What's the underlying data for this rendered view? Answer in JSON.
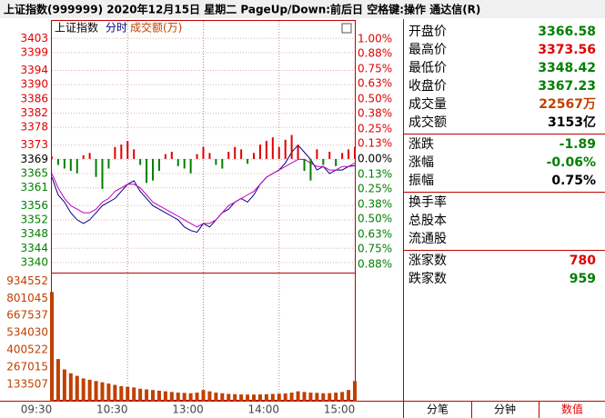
{
  "window_title": "上证指数(999999)  2020年12月15日 星期二 PageUp/Down:前后日 空格键:操作 通达信(R)",
  "chart_data": [
    {
      "type": "line",
      "title": "上证指数",
      "x": [
        "09:30",
        "09:35",
        "09:40",
        "09:45",
        "09:50",
        "09:55",
        "10:00",
        "10:05",
        "10:10",
        "10:15",
        "10:20",
        "10:25",
        "10:30",
        "10:35",
        "10:40",
        "10:45",
        "10:50",
        "10:55",
        "11:00",
        "11:05",
        "11:10",
        "11:15",
        "11:20",
        "11:25",
        "11:30",
        "13:05",
        "13:10",
        "13:15",
        "13:20",
        "13:25",
        "13:30",
        "13:35",
        "13:40",
        "13:45",
        "13:50",
        "13:55",
        "14:00",
        "14:05",
        "14:10",
        "14:15",
        "14:20",
        "14:25",
        "14:30",
        "14:35",
        "14:40",
        "14:45",
        "14:50",
        "14:55",
        "15:00"
      ],
      "xticks": [
        "09:30",
        "10:30",
        "13:00",
        "14:00",
        "15:00"
      ],
      "series": [
        {
          "name": "分时",
          "color": "#000080",
          "values": [
            3364,
            3359,
            3357,
            3354,
            3352,
            3351,
            3352,
            3354,
            3356,
            3357,
            3358,
            3360,
            3362,
            3363,
            3360,
            3358,
            3356,
            3355,
            3354,
            3353,
            3352,
            3350,
            3349,
            3348.5,
            3351,
            3350,
            3352,
            3354,
            3355,
            3357,
            3358,
            3357,
            3359,
            3362,
            3364,
            3365,
            3366,
            3368,
            3371,
            3373,
            3371,
            3369,
            3366,
            3367,
            3365,
            3366,
            3366,
            3367,
            3367.23
          ]
        },
        {
          "color": "#c000c0",
          "values": [
            3365,
            3361,
            3358,
            3356,
            3355,
            3354,
            3354,
            3355,
            3357,
            3358,
            3360,
            3361,
            3362,
            3362,
            3361,
            3359,
            3357,
            3356,
            3355,
            3354,
            3353,
            3352,
            3351,
            3350,
            3351,
            3351,
            3352,
            3354,
            3356,
            3357,
            3358,
            3359,
            3360,
            3362,
            3364,
            3365,
            3366,
            3367,
            3368,
            3369,
            3369,
            3368,
            3367,
            3367,
            3366,
            3366,
            3367,
            3367,
            3368
          ]
        },
        {
          "type": "bar",
          "axis": "y2",
          "colors": [
            "#e00000",
            "#008000"
          ],
          "values": [
            0.02,
            -0.05,
            -0.08,
            -0.1,
            -0.12,
            0.03,
            0.05,
            -0.15,
            -0.25,
            -0.08,
            0.1,
            0.12,
            0.15,
            0.08,
            -0.05,
            -0.2,
            -0.18,
            -0.1,
            0.04,
            0.06,
            -0.06,
            -0.08,
            -0.12,
            0.04,
            0.1,
            0.05,
            -0.05,
            -0.08,
            0.06,
            0.1,
            0.08,
            -0.04,
            0.05,
            0.12,
            0.15,
            0.18,
            0.1,
            0.16,
            0.2,
            0.12,
            -0.1,
            -0.18,
            0.08,
            -0.05,
            0.06,
            -0.06,
            0.05,
            0.08,
            0.1
          ]
        }
      ],
      "ylim": [
        3339.47,
        3402.81
      ],
      "yticks": [
        3403,
        3399,
        3394,
        3390,
        3386,
        3382,
        3378,
        3373,
        3369,
        3365,
        3361,
        3356,
        3352,
        3348,
        3344,
        3340
      ],
      "y2lim": [
        -0.88,
        1.0
      ],
      "y2ticks": [
        {
          "value": 1.0,
          "label": "1.00%"
        },
        {
          "value": 0.88,
          "label": "0.88%"
        },
        {
          "value": 0.75,
          "label": "0.75%"
        },
        {
          "value": 0.63,
          "label": "0.63%"
        },
        {
          "value": 0.5,
          "label": "0.50%"
        },
        {
          "value": 0.38,
          "label": "0.38%"
        },
        {
          "value": 0.25,
          "label": "0.25%"
        },
        {
          "value": 0.13,
          "label": "0.13%"
        },
        {
          "value": 0,
          "label": "0.00%"
        },
        {
          "value": -0.13,
          "label": "0.13%"
        },
        {
          "value": -0.25,
          "label": "0.25%"
        },
        {
          "value": -0.38,
          "label": "0.38%"
        },
        {
          "value": -0.5,
          "label": "0.50%"
        },
        {
          "value": -0.63,
          "label": "0.63%"
        },
        {
          "value": -0.75,
          "label": "0.75%"
        },
        {
          "value": -0.88,
          "label": "0.88%"
        }
      ],
      "up_color": "#e00000",
      "down_color": "#008000",
      "grid": true
    },
    {
      "type": "bar",
      "series": [
        {
          "name": "成交额(万)",
          "color": "#c04000",
          "values": [
            850000,
            330000,
            250000,
            220000,
            200000,
            180000,
            170000,
            160000,
            150000,
            140000,
            130000,
            120000,
            115000,
            110000,
            100000,
            95000,
            90000,
            85000,
            80000,
            75000,
            70000,
            68000,
            65000,
            70000,
            90000,
            80000,
            70000,
            65000,
            60000,
            58000,
            56000,
            55000,
            55000,
            56000,
            58000,
            60000,
            62000,
            64000,
            70000,
            80000,
            75000,
            70000,
            68000,
            65000,
            66000,
            70000,
            75000,
            90000,
            160000
          ]
        }
      ],
      "ylim": [
        0,
        1000000
      ],
      "yticks": [
        934552,
        801045,
        667537,
        534030,
        400522,
        267015,
        133507
      ]
    }
  ],
  "info_panel": {
    "groups": [
      [
        {
          "label": "开盘价",
          "value": "3366.58",
          "color": "#008000"
        },
        {
          "label": "最高价",
          "value": "3373.56",
          "color": "#e00000"
        },
        {
          "label": "最低价",
          "value": "3348.42",
          "color": "#008000"
        },
        {
          "label": "收盘价",
          "value": "3367.23",
          "color": "#008000"
        },
        {
          "label": "成交量",
          "value": "22567万",
          "color": "#c04000"
        },
        {
          "label": "成交额",
          "value": "3153亿",
          "color": "#000000"
        }
      ],
      [
        {
          "label": "涨跌",
          "value": "-1.89",
          "color": "#008000"
        },
        {
          "label": "涨幅",
          "value": "-0.06%",
          "color": "#008000"
        },
        {
          "label": "振幅",
          "value": "0.75%",
          "color": "#000000"
        }
      ],
      [
        {
          "label": "换手率"
        },
        {
          "label": "总股本"
        },
        {
          "label": "流通股"
        }
      ],
      [
        {
          "label": "涨家数",
          "value": "780",
          "color": "#e00000"
        },
        {
          "label": "跌家数",
          "value": "959",
          "color": "#008000"
        }
      ]
    ],
    "tabs": [
      {
        "label": "分笔"
      },
      {
        "label": "分钟"
      },
      {
        "label": "数值",
        "active": true
      }
    ]
  }
}
